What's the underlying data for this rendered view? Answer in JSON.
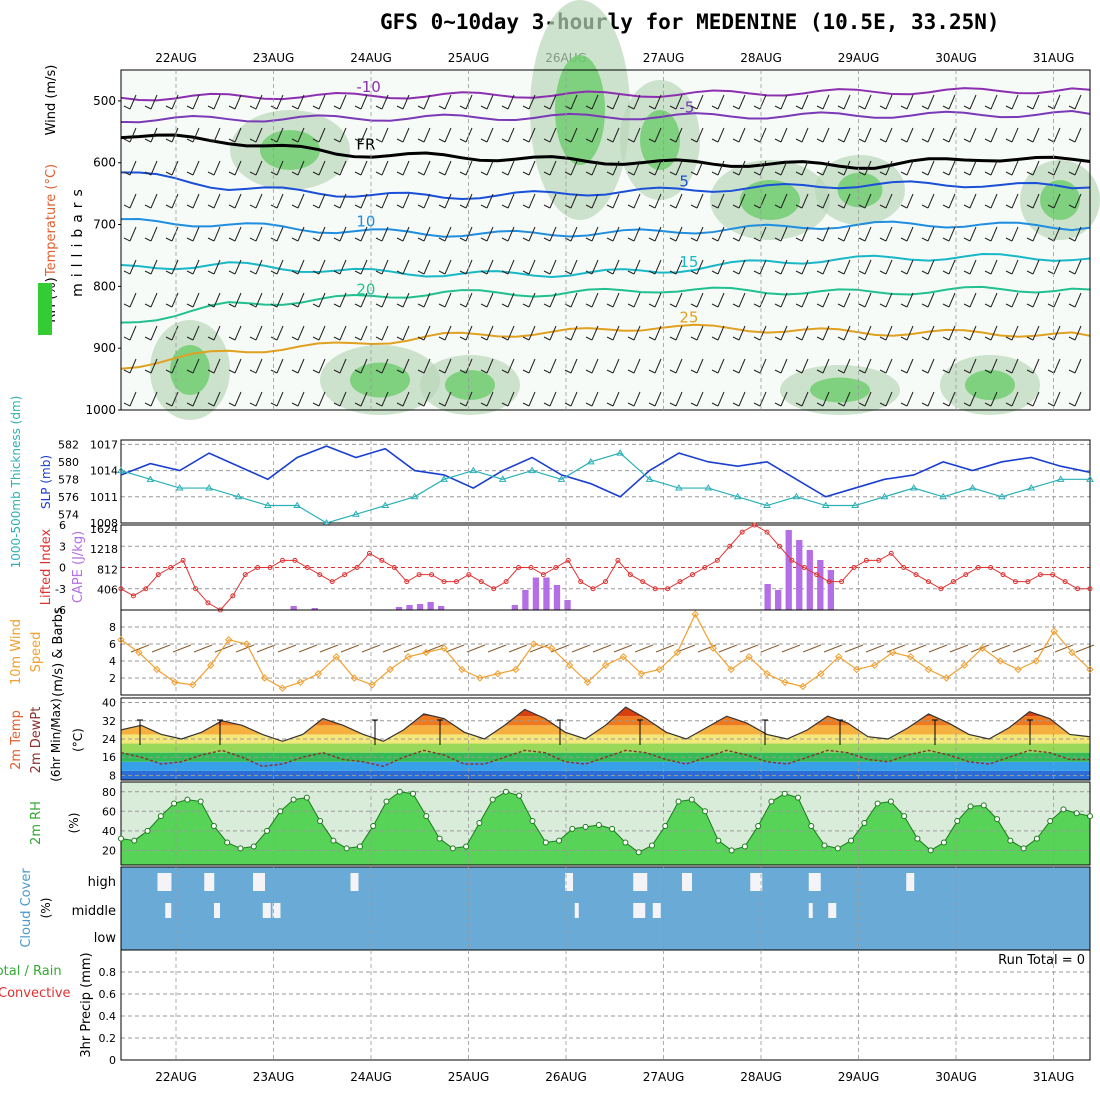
{
  "title": "GFS 0~10day 3-hourly for MEDENINE (10.5E, 33.25N)",
  "dates": [
    "22AUG",
    "23AUG",
    "24AUG",
    "25AUG",
    "26AUG",
    "27AUG",
    "28AUG",
    "29AUG",
    "30AUG",
    "31AUG"
  ],
  "colors": {
    "accent": "#6baed6",
    "thickness": "#2ab0b8",
    "slp": "#1a3fd0",
    "lifted": "#e03030",
    "cape": "#b46ee6",
    "wind": "#f0a030",
    "barb": "#8b5a2b",
    "rh": "#33cc33",
    "cloud": "#6aaad6"
  },
  "chart_data": [
    {
      "type": "heatmap",
      "panel": "upper-air",
      "labels": {
        "wind": "Wind (m/s)",
        "temperature": "Temperature (°C)",
        "rh": "RH (%)",
        "pressure": "millibars"
      },
      "y_ticks": [
        500,
        600,
        700,
        800,
        900,
        1000
      ],
      "ylim": [
        450,
        1000
      ],
      "isotherms": [
        {
          "label": "-10",
          "values": [
            495,
            493,
            492,
            491,
            490,
            489,
            487,
            485,
            484,
            482
          ]
        },
        {
          "label": "-5",
          "values": [
            530,
            529,
            528,
            527,
            526,
            525,
            524,
            523,
            522,
            521
          ]
        },
        {
          "label": "FR",
          "values": [
            555,
            565,
            585,
            590,
            595,
            600,
            602,
            605,
            592,
            598
          ]
        },
        {
          "label": "5",
          "values": [
            615,
            640,
            650,
            655,
            650,
            645,
            640,
            635,
            635,
            640
          ]
        },
        {
          "label": "10",
          "values": [
            695,
            700,
            710,
            715,
            715,
            712,
            705,
            700,
            700,
            705
          ]
        },
        {
          "label": "15",
          "values": [
            770,
            765,
            775,
            780,
            780,
            775,
            760,
            755,
            752,
            755
          ]
        },
        {
          "label": "20",
          "values": [
            860,
            830,
            820,
            810,
            812,
            805,
            808,
            810,
            805,
            805
          ]
        },
        {
          "label": "25",
          "values": [
            930,
            905,
            895,
            880,
            875,
            865,
            870,
            875,
            875,
            880
          ]
        }
      ]
    },
    {
      "type": "line",
      "panel": "slp-thickness",
      "labels": {
        "left": "1000-500mb Thickness (dm)",
        "right": "SLP (mb)"
      },
      "thickness_ticks": [
        574,
        576,
        578,
        580,
        582
      ],
      "slp_ticks": [
        1008,
        1011,
        1014,
        1017
      ],
      "series": [
        {
          "name": "SLP",
          "axis": "right",
          "values": [
            1013.5,
            1014.8,
            1014.0,
            1016.0,
            1014.5,
            1013.0,
            1015.5,
            1016.8,
            1015.5,
            1016.5,
            1014.0,
            1013.5,
            1012.0,
            1014.0,
            1015.5,
            1013.5,
            1012.5,
            1011.0,
            1014.0,
            1016.0,
            1015.0,
            1014.5,
            1015.0,
            1013.0,
            1011.0,
            1012.0,
            1013.0,
            1013.5,
            1015.0,
            1014.0,
            1015.0,
            1015.5,
            1014.5,
            1013.8
          ]
        },
        {
          "name": "Thickness",
          "axis": "left",
          "values": [
            579,
            578,
            577,
            577,
            576,
            575,
            575,
            573,
            574,
            575,
            576,
            578,
            579,
            578,
            579,
            578,
            580,
            581,
            578,
            577,
            577,
            576,
            575,
            576,
            575,
            575,
            576,
            577,
            576,
            577,
            576,
            577,
            578,
            578
          ]
        }
      ]
    },
    {
      "type": "bar",
      "panel": "lifted-cape",
      "labels": {
        "left": "Lifted Index",
        "right": "CAPE (J/kg)"
      },
      "lifted_ticks": [
        -6,
        -3,
        0,
        3,
        6
      ],
      "cape_ticks": [
        406,
        812,
        1218,
        1624
      ],
      "series": [
        {
          "name": "Lifted Index",
          "values": [
            3,
            4,
            3,
            1,
            0,
            -1,
            3,
            5,
            6,
            4,
            1,
            0,
            0,
            -1,
            -1,
            0,
            1,
            2,
            1,
            0,
            -2,
            -1,
            0,
            2,
            1,
            1,
            2,
            2,
            1,
            2,
            3,
            2,
            0,
            0,
            1,
            0,
            -1,
            2,
            3,
            2,
            -1,
            1,
            2,
            3,
            3,
            2,
            1,
            0,
            -1,
            -3,
            -5,
            -6,
            -5,
            -3,
            -1,
            0,
            1,
            2,
            2,
            0,
            -1,
            -1,
            -2,
            0,
            1,
            2,
            3,
            2,
            1,
            0,
            0,
            1,
            2,
            2,
            1,
            1,
            2,
            3,
            3
          ]
        },
        {
          "name": "CAPE",
          "values": [
            0,
            0,
            0,
            0,
            0,
            0,
            0,
            0,
            0,
            0,
            0,
            0,
            0,
            0,
            0,
            0,
            80,
            0,
            40,
            0,
            0,
            0,
            0,
            0,
            0,
            0,
            60,
            100,
            120,
            160,
            80,
            0,
            0,
            0,
            0,
            0,
            0,
            100,
            400,
            650,
            650,
            500,
            200,
            0,
            0,
            0,
            0,
            0,
            0,
            0,
            0,
            0,
            0,
            0,
            0,
            0,
            0,
            0,
            0,
            0,
            0,
            520,
            400,
            1600,
            1400,
            1200,
            1000,
            800,
            0,
            0,
            0,
            0,
            0,
            0,
            0,
            0,
            0,
            0,
            0,
            0,
            0,
            0,
            0,
            0,
            0,
            0,
            0,
            0,
            0,
            0,
            0,
            0
          ]
        }
      ]
    },
    {
      "type": "line",
      "panel": "wind-10m",
      "labels": {
        "left": "10m Wind Speed & Barbs",
        "unit": "(m/s)"
      },
      "ticks": [
        2,
        4,
        6,
        8
      ],
      "series": [
        {
          "name": "Speed",
          "values": [
            6.5,
            5.0,
            3.0,
            1.5,
            1.2,
            3.5,
            6.5,
            6.0,
            2.0,
            0.8,
            1.5,
            2.5,
            4.5,
            2.0,
            1.2,
            3.0,
            4.5,
            5.0,
            5.5,
            3.0,
            2.0,
            2.5,
            3.0,
            6.0,
            5.5,
            3.5,
            1.5,
            3.5,
            4.5,
            2.5,
            3.0,
            5.0,
            9.5,
            5.5,
            3.0,
            4.5,
            2.5,
            1.5,
            1.0,
            2.5,
            4.5,
            3.0,
            3.5,
            5.0,
            4.5,
            3.0,
            2.0,
            3.5,
            5.5,
            4.0,
            3.0,
            4.0,
            7.5,
            5.0,
            3.0
          ]
        }
      ]
    },
    {
      "type": "area",
      "panel": "temperature-2m",
      "labels": {
        "left": "2m Temp",
        "mid": "2m DewPt",
        "right": "(6hr Min/Max)",
        "unit": "(°C)"
      },
      "ticks": [
        8,
        16,
        24,
        32,
        40
      ],
      "series": [
        {
          "name": "Temp",
          "values": [
            28,
            30,
            26,
            24,
            27,
            32,
            30,
            26,
            23,
            26,
            33,
            30,
            26,
            23,
            28,
            35,
            33,
            27,
            24,
            30,
            37,
            33,
            27,
            24,
            30,
            38,
            33,
            27,
            24,
            29,
            34,
            31,
            26,
            24,
            28,
            34,
            31,
            25,
            24,
            29,
            35,
            31,
            26,
            24,
            29,
            36,
            33,
            26,
            25
          ]
        },
        {
          "name": "DewPt",
          "values": [
            18,
            16,
            13,
            14,
            17,
            19,
            16,
            12,
            13,
            16,
            18,
            15,
            14,
            12,
            16,
            19,
            17,
            13,
            13,
            16,
            19,
            18,
            14,
            13,
            16,
            19,
            18,
            15,
            13,
            16,
            19,
            17,
            14,
            13,
            16,
            19,
            18,
            15,
            14,
            17,
            19,
            17,
            14,
            13,
            16,
            19,
            18,
            15,
            15
          ]
        }
      ]
    },
    {
      "type": "area",
      "panel": "rh-2m",
      "labels": {
        "left": "2m RH",
        "unit": "(%)"
      },
      "ticks": [
        20,
        40,
        60,
        80
      ],
      "series": [
        {
          "name": "RH",
          "values": [
            32,
            30,
            40,
            55,
            68,
            72,
            70,
            45,
            28,
            22,
            24,
            40,
            60,
            72,
            74,
            50,
            30,
            22,
            24,
            45,
            70,
            80,
            78,
            55,
            32,
            22,
            24,
            48,
            72,
            80,
            76,
            50,
            28,
            30,
            42,
            44,
            46,
            42,
            28,
            18,
            25,
            45,
            70,
            72,
            60,
            30,
            20,
            24,
            45,
            70,
            78,
            74,
            45,
            25,
            22,
            30,
            48,
            68,
            70,
            55,
            32,
            20,
            28,
            50,
            65,
            66,
            52,
            30,
            22,
            32,
            50,
            62,
            58,
            55
          ]
        }
      ]
    },
    {
      "type": "bar",
      "panel": "cloud-cover",
      "labels": {
        "left": "Cloud Cover",
        "unit": "(%)",
        "high": "high",
        "middle": "middle",
        "low": "low"
      },
      "high": [
        [
          0.22,
          0.35
        ],
        [
          0.7,
          0.25
        ],
        [
          1.2,
          0.3
        ],
        [
          2.2,
          0.2
        ],
        [
          4.4,
          0.2
        ],
        [
          5.1,
          0.35
        ],
        [
          5.6,
          0.25
        ],
        [
          6.3,
          0.3
        ],
        [
          6.9,
          0.3
        ],
        [
          7.9,
          0.2
        ]
      ],
      "middle": [
        [
          0.3,
          0.15
        ],
        [
          0.8,
          0.15
        ],
        [
          1.3,
          0.2
        ],
        [
          1.4,
          0.2
        ],
        [
          4.5,
          0.1
        ],
        [
          5.1,
          0.3
        ],
        [
          5.3,
          0.2
        ],
        [
          6.9,
          0.1
        ],
        [
          7.1,
          0.2
        ]
      ]
    },
    {
      "type": "line",
      "panel": "precipitation",
      "labels": {
        "left": "3hr Precip (mm)",
        "legend_total": "Total / Rain",
        "legend_conv": "Convective",
        "run_total": "Run Total = 0"
      },
      "ticks": [
        0,
        0.2,
        0.4,
        0.6,
        0.8
      ],
      "ylim": [
        0,
        1.0
      ],
      "values": []
    }
  ]
}
